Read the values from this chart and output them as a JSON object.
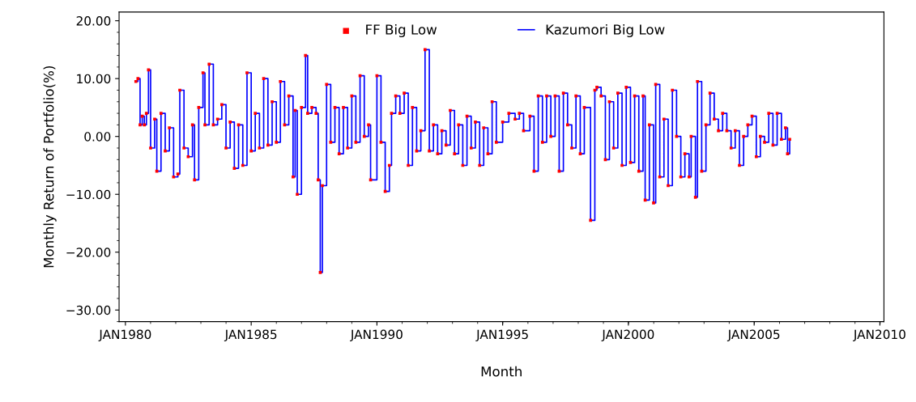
{
  "chart_data": {
    "type": "step",
    "xlabel": "Month",
    "ylabel": "Monthly Return of Portfolio(%)",
    "x": [
      "1980-06",
      "1980-07",
      "1980-08",
      "1980-09",
      "1980-10",
      "1980-11",
      "1980-12",
      "1981-01",
      "1981-03",
      "1981-04",
      "1981-06",
      "1981-08",
      "1981-10",
      "1981-12",
      "1982-02",
      "1982-03",
      "1982-05",
      "1982-07",
      "1982-09",
      "1982-10",
      "1982-12",
      "1983-02",
      "1983-03",
      "1983-05",
      "1983-07",
      "1983-09",
      "1983-11",
      "1984-01",
      "1984-03",
      "1984-05",
      "1984-07",
      "1984-09",
      "1984-11",
      "1985-01",
      "1985-03",
      "1985-05",
      "1985-07",
      "1985-09",
      "1985-11",
      "1986-01",
      "1986-03",
      "1986-05",
      "1986-07",
      "1986-09",
      "1986-10",
      "1986-11",
      "1987-01",
      "1987-03",
      "1987-04",
      "1987-06",
      "1987-08",
      "1987-09",
      "1987-10",
      "1987-11",
      "1988-01",
      "1988-03",
      "1988-05",
      "1988-07",
      "1988-09",
      "1988-11",
      "1989-01",
      "1989-03",
      "1989-05",
      "1989-07",
      "1989-09",
      "1989-10",
      "1990-01",
      "1990-03",
      "1990-05",
      "1990-07",
      "1990-08",
      "1990-10",
      "1990-12",
      "1991-02",
      "1991-04",
      "1991-06",
      "1991-08",
      "1991-10",
      "1991-12",
      "1992-02",
      "1992-04",
      "1992-06",
      "1992-08",
      "1992-10",
      "1992-12",
      "1993-02",
      "1993-04",
      "1993-06",
      "1993-08",
      "1993-10",
      "1993-12",
      "1994-02",
      "1994-04",
      "1994-06",
      "1994-08",
      "1994-10",
      "1995-01",
      "1995-04",
      "1995-07",
      "1995-09",
      "1995-11",
      "1996-02",
      "1996-04",
      "1996-06",
      "1996-08",
      "1996-10",
      "1996-12",
      "1997-02",
      "1997-04",
      "1997-06",
      "1997-08",
      "1997-10",
      "1997-12",
      "1998-02",
      "1998-04",
      "1998-07",
      "1998-09",
      "1998-10",
      "1998-12",
      "1999-02",
      "1999-04",
      "1999-06",
      "1999-08",
      "1999-10",
      "1999-12",
      "2000-02",
      "2000-04",
      "2000-06",
      "2000-08",
      "2000-09",
      "2000-11",
      "2001-01",
      "2001-02",
      "2001-04",
      "2001-06",
      "2001-08",
      "2001-10",
      "2001-12",
      "2002-02",
      "2002-04",
      "2002-06",
      "2002-07",
      "2002-09",
      "2002-10",
      "2002-12",
      "2003-02",
      "2003-04",
      "2003-06",
      "2003-08",
      "2003-10",
      "2003-12",
      "2004-02",
      "2004-04",
      "2004-06",
      "2004-08",
      "2004-10",
      "2004-12",
      "2005-02",
      "2005-04",
      "2005-06",
      "2005-08",
      "2005-10",
      "2005-12",
      "2006-02",
      "2006-04",
      "2006-05",
      "2006-06"
    ],
    "series": [
      {
        "name": "Kazumori Big Low",
        "color": "#0000ff",
        "marker": "none",
        "values": [
          9.5,
          10,
          2,
          3.5,
          2,
          4,
          11.5,
          -2,
          3,
          -6,
          4,
          -2.5,
          1.5,
          -7,
          -6.5,
          8,
          -2,
          -3.5,
          2,
          -7.5,
          5,
          11,
          2,
          12.5,
          2,
          3,
          5.5,
          -2,
          2.5,
          -5.5,
          2,
          -5,
          11,
          -2.5,
          4,
          -2,
          10,
          -1.5,
          6,
          -1,
          9.5,
          2,
          7,
          -7,
          4.5,
          -10,
          5,
          14,
          4,
          5,
          4,
          -7.5,
          -23.5,
          -8.5,
          9,
          -1,
          5,
          -3,
          5,
          -2,
          7,
          -1,
          10.5,
          0,
          2,
          -7.5,
          10.5,
          -1,
          -9.5,
          -5,
          4,
          7,
          4,
          7.5,
          -5,
          5,
          -2.5,
          1,
          15,
          -2.5,
          2,
          -3,
          1,
          -1.5,
          4.5,
          -3,
          2,
          -5,
          3.5,
          -2,
          2.5,
          -5,
          1.5,
          -3,
          6,
          -1,
          2.5,
          4,
          3,
          4,
          1,
          3.5,
          -6,
          7,
          -1,
          7,
          0,
          7,
          -6,
          7.5,
          2,
          -2,
          7,
          -3,
          5,
          -14.5,
          8,
          8.5,
          7,
          -4,
          6,
          -2,
          7.5,
          -5,
          8.5,
          -4.5,
          7,
          -6,
          7,
          -11,
          2,
          -11.5,
          9,
          -7,
          3,
          -8.5,
          8,
          0,
          -7,
          -3,
          -7,
          0,
          -10.5,
          9.5,
          -6,
          2,
          7.5,
          3,
          1,
          4,
          1,
          -2,
          1,
          -5,
          0,
          2,
          3.5,
          -3.5,
          0,
          -1,
          4,
          -1.5,
          4,
          -0.5,
          1.5,
          -3,
          -0.5
        ]
      },
      {
        "name": "FF Big Low",
        "type": "scatter",
        "color": "#ff0000",
        "marker": "square",
        "values": [
          9.5,
          10,
          2,
          3.5,
          2,
          4,
          11.5,
          -2,
          3,
          -6,
          4,
          -2.5,
          1.5,
          -7,
          -6.5,
          8,
          -2,
          -3.5,
          2,
          -7.5,
          5,
          11,
          2,
          12.5,
          2,
          3,
          5.5,
          -2,
          2.5,
          -5.5,
          2,
          -5,
          11,
          -2.5,
          4,
          -2,
          10,
          -1.5,
          6,
          -1,
          9.5,
          2,
          7,
          -7,
          4.5,
          -10,
          5,
          14,
          4,
          5,
          4,
          -7.5,
          -23.5,
          -8.5,
          9,
          -1,
          5,
          -3,
          5,
          -2,
          7,
          -1,
          10.5,
          0,
          2,
          -7.5,
          10.5,
          -1,
          -9.5,
          -5,
          4,
          7,
          4,
          7.5,
          -5,
          5,
          -2.5,
          1,
          15,
          -2.5,
          2,
          -3,
          1,
          -1.5,
          4.5,
          -3,
          2,
          -5,
          3.5,
          -2,
          2.5,
          -5,
          1.5,
          -3,
          6,
          -1,
          2.5,
          4,
          3,
          4,
          1,
          3.5,
          -6,
          7,
          -1,
          7,
          0,
          7,
          -6,
          7.5,
          2,
          -2,
          7,
          -3,
          5,
          -14.5,
          8,
          8.5,
          7,
          -4,
          6,
          -2,
          7.5,
          -5,
          8.5,
          -4.5,
          7,
          -6,
          7,
          -11,
          2,
          -11.5,
          9,
          -7,
          3,
          -8.5,
          8,
          0,
          -7,
          -3,
          -7,
          0,
          -10.5,
          9.5,
          -6,
          2,
          7.5,
          3,
          1,
          4,
          1,
          -2,
          1,
          -5,
          0,
          2,
          3.5,
          -3.5,
          0,
          -1,
          4,
          -1.5,
          4,
          -0.5,
          1.5,
          -3,
          -0.5
        ]
      }
    ],
    "xlim": [
      "1979-10",
      "2010-03"
    ],
    "xticks": [
      {
        "value": "1980-01",
        "label": "JAN1980"
      },
      {
        "value": "1985-01",
        "label": "JAN1985"
      },
      {
        "value": "1990-01",
        "label": "JAN1990"
      },
      {
        "value": "1995-01",
        "label": "JAN1995"
      },
      {
        "value": "2000-01",
        "label": "JAN2000"
      },
      {
        "value": "2005-01",
        "label": "JAN2005"
      },
      {
        "value": "2010-01",
        "label": "JAN2010"
      }
    ],
    "ylim": [
      -32,
      21.5
    ],
    "yticks": [
      {
        "value": -30,
        "label": "−30.00"
      },
      {
        "value": -20,
        "label": "−20.00"
      },
      {
        "value": -10,
        "label": "−10.00"
      },
      {
        "value": 0,
        "label": "0.00"
      },
      {
        "value": 10,
        "label": "10.00"
      },
      {
        "value": 20,
        "label": "20.00"
      }
    ],
    "legend": "top",
    "grid": false
  }
}
